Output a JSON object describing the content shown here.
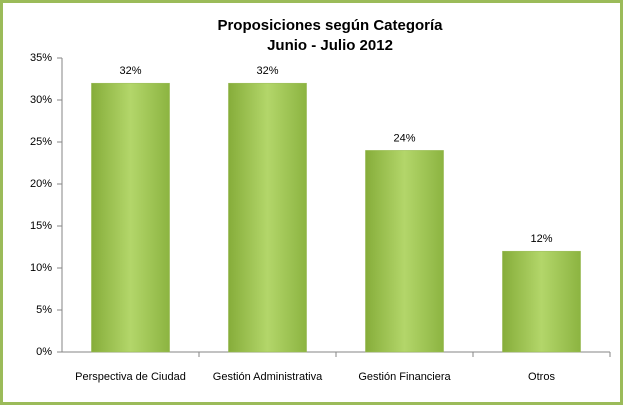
{
  "chart_data": {
    "type": "bar",
    "title": "Proposiciones según Categoría",
    "subtitle": "Junio - Julio 2012",
    "categories": [
      "Perspectiva de Ciudad",
      "Gestión Administrativa",
      "Gestión Financiera",
      "Otros"
    ],
    "values": [
      32,
      32,
      24,
      12
    ],
    "value_labels": [
      "32%",
      "32%",
      "24%",
      "12%"
    ],
    "color": "#9bbb59",
    "ylim": [
      0,
      35
    ],
    "yticks": [
      {
        "value": 0,
        "label": "0%"
      },
      {
        "value": 5,
        "label": "5%"
      },
      {
        "value": 10,
        "label": "10%"
      },
      {
        "value": 15,
        "label": "15%"
      },
      {
        "value": 20,
        "label": "20%"
      },
      {
        "value": 25,
        "label": "25%"
      },
      {
        "value": 30,
        "label": "30%"
      },
      {
        "value": 35,
        "label": "35%"
      }
    ],
    "grid": false
  }
}
